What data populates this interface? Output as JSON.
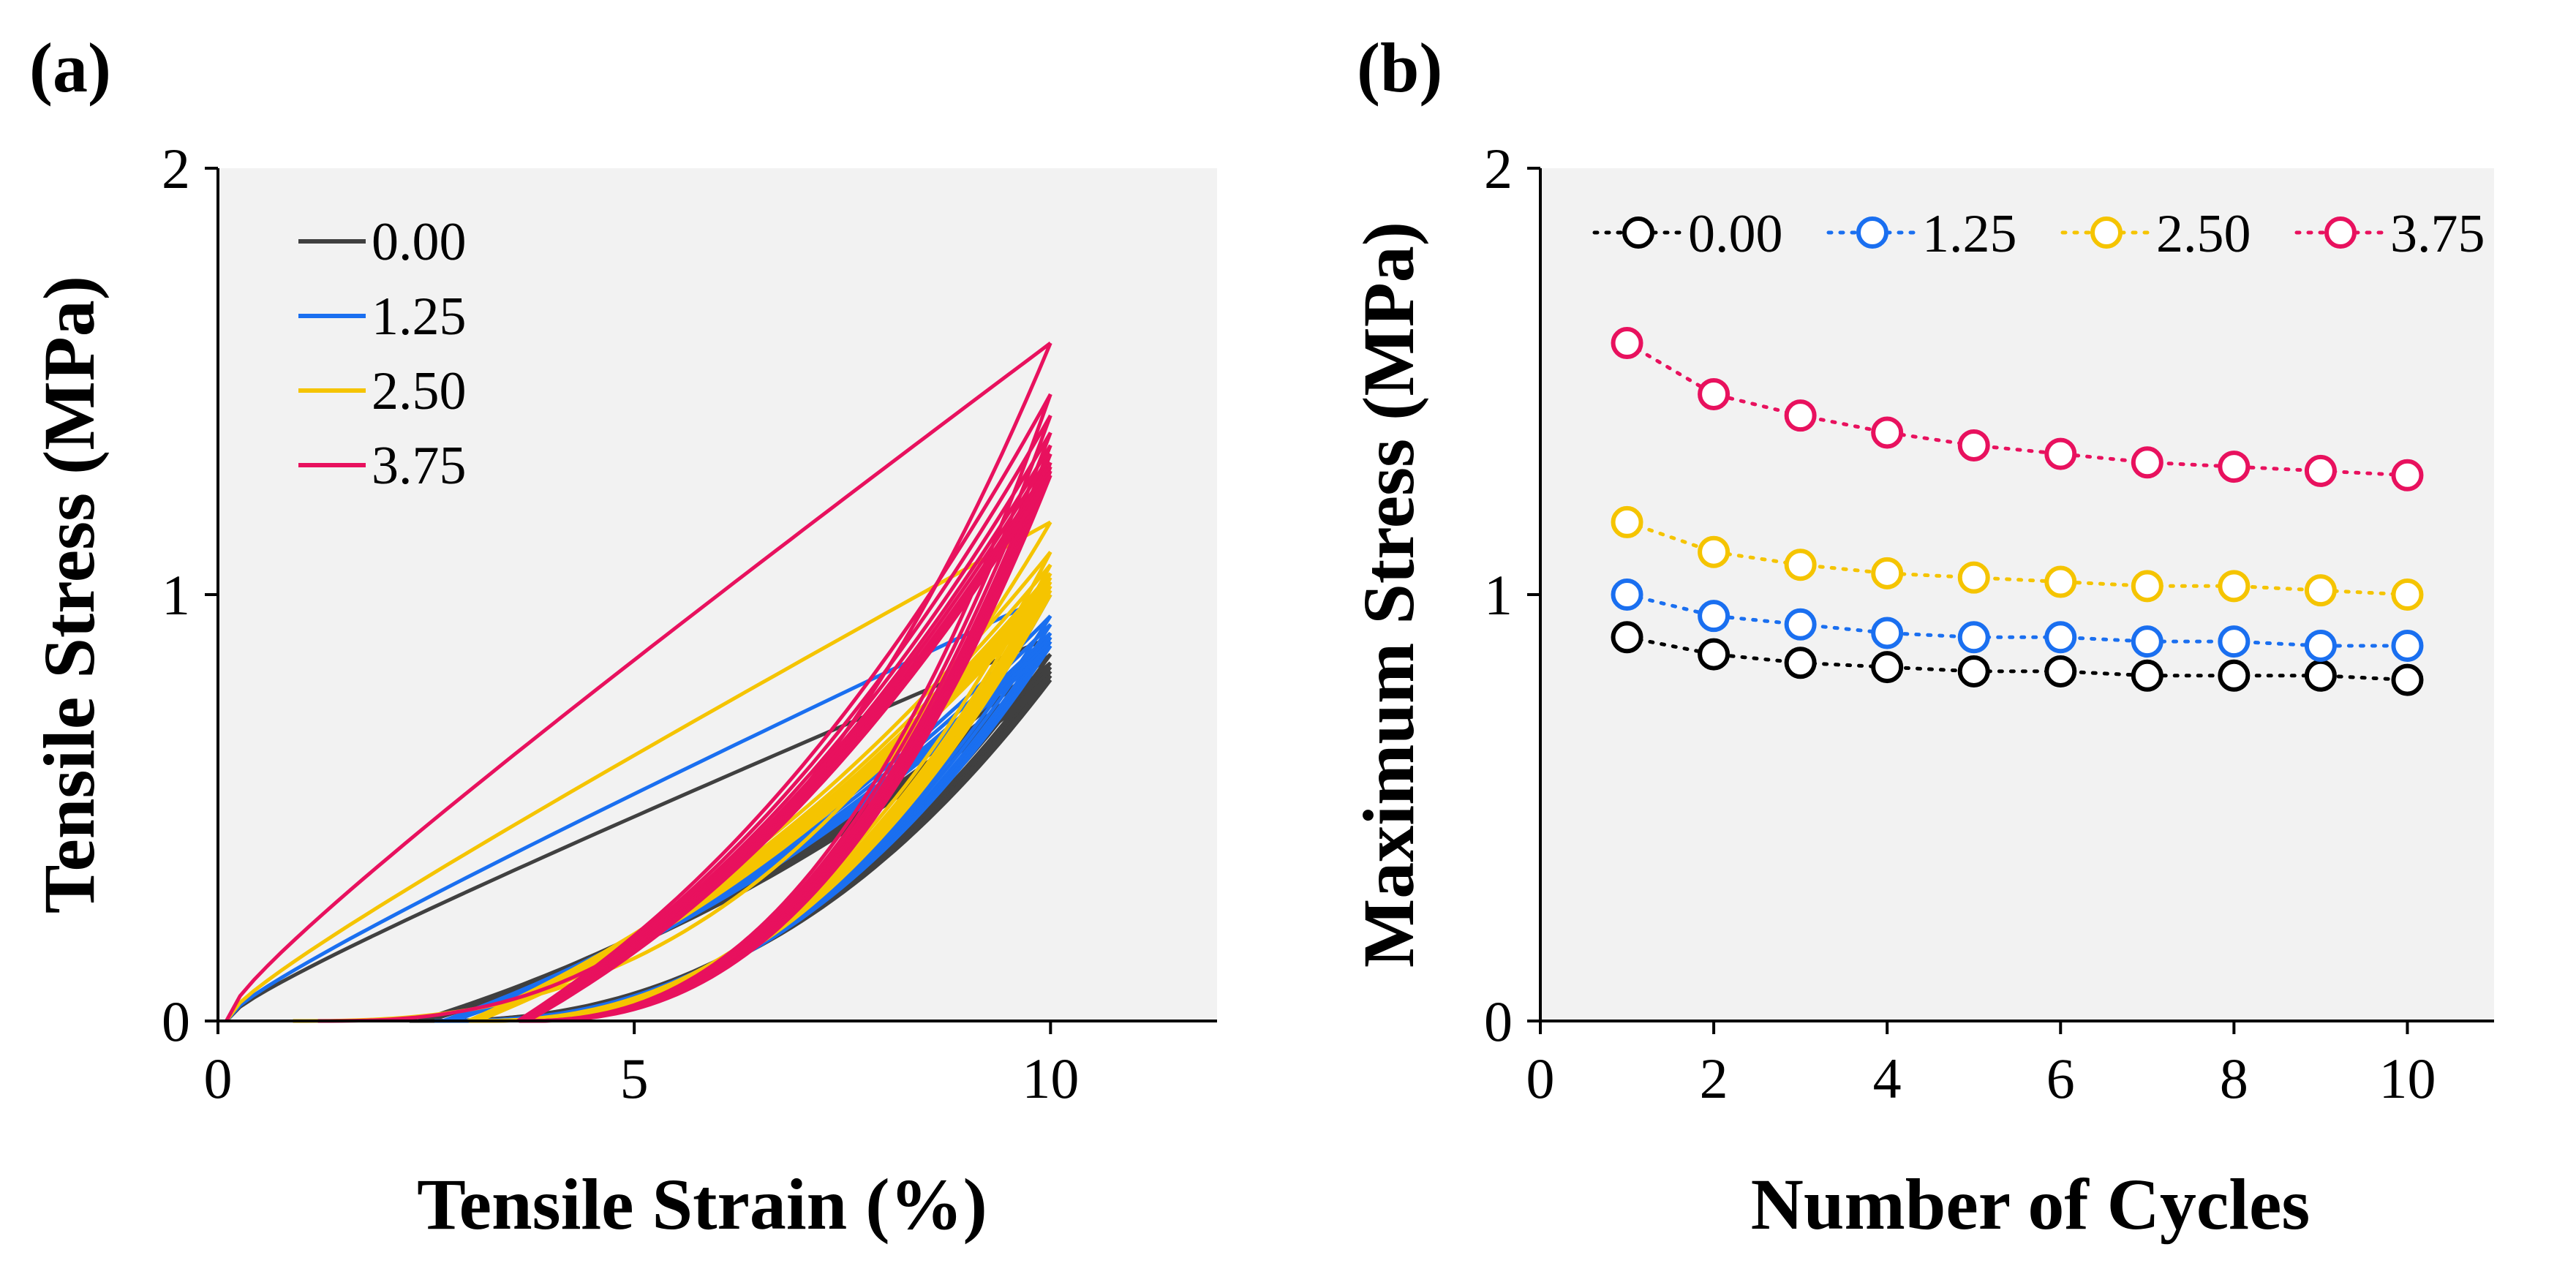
{
  "chart_data": [
    {
      "panel": "(a)",
      "type": "line",
      "title": "",
      "xlabel": "Tensile Strain (%)",
      "ylabel": "Tensile Stress (MPa)",
      "xlim": [
        0,
        12
      ],
      "ylim": [
        0,
        2
      ],
      "xticks": [
        0,
        5,
        10
      ],
      "yticks": [
        0,
        1,
        2
      ],
      "legend_position": "top-left",
      "series": [
        {
          "name": "0.00",
          "color": "#404040",
          "max_stress": [
            0.9,
            0.86,
            0.84,
            0.83,
            0.82,
            0.82,
            0.81,
            0.81,
            0.81,
            0.8
          ],
          "first_unload_zero_strain": 2.3,
          "residual_strain": 2.4
        },
        {
          "name": "1.25",
          "color": "#1a6ff0",
          "max_stress": [
            1.0,
            0.95,
            0.93,
            0.91,
            0.9,
            0.9,
            0.89,
            0.89,
            0.88,
            0.88
          ],
          "first_unload_zero_strain": 2.6,
          "residual_strain": 2.7
        },
        {
          "name": "2.50",
          "color": "#f5c400",
          "max_stress": [
            1.17,
            1.1,
            1.07,
            1.05,
            1.04,
            1.03,
            1.02,
            1.02,
            1.01,
            1.0
          ],
          "first_unload_zero_strain": 0.9,
          "residual_strain": 3.0
        },
        {
          "name": "3.75",
          "color": "#e8115e",
          "max_stress": [
            1.59,
            1.47,
            1.42,
            1.38,
            1.35,
            1.33,
            1.31,
            1.3,
            1.29,
            1.28
          ],
          "first_unload_zero_strain": 1.2,
          "residual_strain": 3.6
        }
      ]
    },
    {
      "panel": "(b)",
      "type": "line",
      "title": "",
      "xlabel": "Number of Cycles",
      "ylabel": "Maximum Stress (MPa)",
      "xlim": [
        0,
        11
      ],
      "ylim": [
        0,
        2
      ],
      "xticks": [
        0,
        2,
        4,
        6,
        8,
        10
      ],
      "yticks": [
        0,
        1,
        2
      ],
      "legend_position": "top",
      "x": [
        1,
        2,
        3,
        4,
        5,
        6,
        7,
        8,
        9,
        10
      ],
      "series": [
        {
          "name": "0.00",
          "color": "#000000",
          "values": [
            0.9,
            0.86,
            0.84,
            0.83,
            0.82,
            0.82,
            0.81,
            0.81,
            0.81,
            0.8
          ]
        },
        {
          "name": "1.25",
          "color": "#1a6ff0",
          "values": [
            1.0,
            0.95,
            0.93,
            0.91,
            0.9,
            0.9,
            0.89,
            0.89,
            0.88,
            0.88
          ]
        },
        {
          "name": "2.50",
          "color": "#f5c400",
          "values": [
            1.17,
            1.1,
            1.07,
            1.05,
            1.04,
            1.03,
            1.02,
            1.02,
            1.01,
            1.0
          ]
        },
        {
          "name": "3.75",
          "color": "#e8115e",
          "values": [
            1.59,
            1.47,
            1.42,
            1.38,
            1.35,
            1.33,
            1.31,
            1.3,
            1.29,
            1.28
          ]
        }
      ]
    }
  ]
}
